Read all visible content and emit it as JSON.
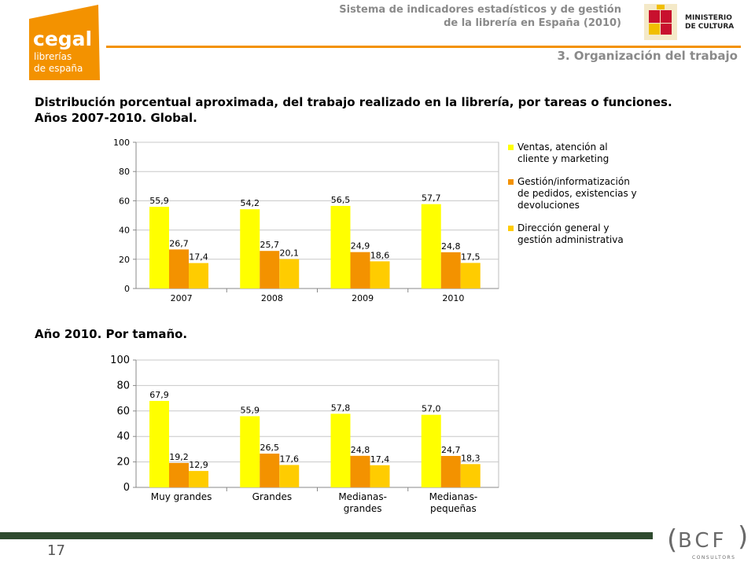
{
  "header": {
    "title_line1": "Sistema de indicadores estadísticos y de gestión",
    "title_line2": "de la librería en España (2010)",
    "section": "3. Organización del trabajo",
    "logo_text": [
      "cegal",
      "librerías",
      "de españa"
    ],
    "ministry_text": [
      "MINISTERIO",
      "DE CULTURA"
    ]
  },
  "titles": {
    "main_line1": "Distribución porcentual aproximada, del trabajo realizado en la librería, por tareas o funciones.",
    "main_line2": "Años 2007-2010. Global.",
    "second": "Año 2010. Por tamaño."
  },
  "legend": [
    {
      "label_line1": "Ventas, atención al",
      "label_line2": "cliente y marketing",
      "label_line3": "",
      "color": "#FFFF00"
    },
    {
      "label_line1": "Gestión/informatización",
      "label_line2": "de pedidos, existencias y",
      "label_line3": "devoluciones",
      "color": "#F39200"
    },
    {
      "label_line1": "Dirección general y",
      "label_line2": "gestión administrativa",
      "label_line3": "",
      "color": "#FFCC00"
    }
  ],
  "footer": {
    "page_number": "17",
    "brand": "BCF",
    "brand_sub": "CONSULTORS"
  },
  "colors": {
    "accent": "#F39200",
    "series1": "#FFFF00",
    "series2": "#F39200",
    "series3": "#FFCC00",
    "footer_bar": "#2f4a2f"
  },
  "chart_data": [
    {
      "type": "bar",
      "categories": [
        [
          "2007"
        ],
        [
          "2008"
        ],
        [
          "2009"
        ],
        [
          "2010"
        ]
      ],
      "series": [
        {
          "name": "Ventas, atención al cliente y marketing",
          "values": [
            55.9,
            54.2,
            56.5,
            57.7
          ],
          "labels": [
            "55,9",
            "54,2",
            "56,5",
            "57,7"
          ]
        },
        {
          "name": "Gestión/informatización de pedidos, existencias y devoluciones",
          "values": [
            26.7,
            25.7,
            24.9,
            24.8
          ],
          "labels": [
            "26,7",
            "25,7",
            "24,9",
            "24,8"
          ]
        },
        {
          "name": "Dirección general y gestión administrativa",
          "values": [
            17.4,
            20.1,
            18.6,
            17.5
          ],
          "labels": [
            "17,4",
            "20,1",
            "18,6",
            "17,5"
          ]
        }
      ],
      "yticks": [
        "0",
        "20",
        "40",
        "60",
        "80",
        "100"
      ],
      "ylim": [
        0,
        100
      ],
      "grid": true
    },
    {
      "type": "bar",
      "categories": [
        [
          "Muy grandes"
        ],
        [
          "Grandes"
        ],
        [
          "Medianas-",
          "grandes"
        ],
        [
          "Medianas-",
          "pequeñas"
        ]
      ],
      "series": [
        {
          "name": "Ventas, atención al cliente y marketing",
          "values": [
            67.9,
            55.9,
            57.8,
            57.0
          ],
          "labels": [
            "67,9",
            "55,9",
            "57,8",
            "57,0"
          ]
        },
        {
          "name": "Gestión/informatización de pedidos, existencias y devoluciones",
          "values": [
            19.2,
            26.5,
            24.8,
            24.7
          ],
          "labels": [
            "19,2",
            "26,5",
            "24,8",
            "24,7"
          ]
        },
        {
          "name": "Dirección general y gestión administrativa",
          "values": [
            12.9,
            17.6,
            17.4,
            18.3
          ],
          "labels": [
            "12,9",
            "17,6",
            "17,4",
            "18,3"
          ]
        }
      ],
      "yticks": [
        "0",
        "20",
        "40",
        "60",
        "80",
        "100"
      ],
      "ylim": [
        0,
        100
      ],
      "grid": true
    }
  ]
}
